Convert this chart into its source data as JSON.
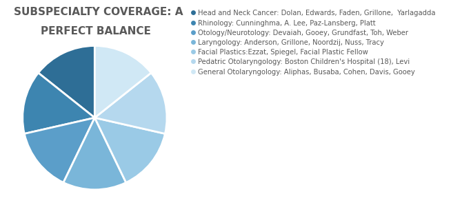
{
  "title_line1": "SUBSPECIALTY COVERAGE: A",
  "title_line2": "PERFECT BALANCE",
  "title_fontsize": 11,
  "title_color": "#595959",
  "slices": [
    {
      "label": "Head and Neck Cancer: Dolan, Edwards, Faden, Grillone,  Yarlagadda",
      "value": 14.28,
      "color": "#2E6E96"
    },
    {
      "label": "Rhinology: Cunninghma, A. Lee, Paz-Lansberg, Platt",
      "value": 14.28,
      "color": "#3D85B0"
    },
    {
      "label": "Otology/Neurotology: Devaiah, Gooey, Grundfast, Toh, Weber",
      "value": 14.28,
      "color": "#5B9EC9"
    },
    {
      "label": "Laryngology: Anderson, Grillone, Noordzij, Nuss, Tracy",
      "value": 14.28,
      "color": "#7AB6D9"
    },
    {
      "label": "Facial Plastics:Ezzat, Spiegel, Facial Plastic Fellow",
      "value": 14.28,
      "color": "#9ACAE6"
    },
    {
      "label": "Pedatric Otolaryngology: Boston Children's Hospital (18), Levi",
      "value": 14.28,
      "color": "#B5D8EE"
    },
    {
      "label": "General Otolaryngology: Aliphas, Busaba, Cohen, Davis, Gooey",
      "value": 14.28,
      "color": "#D0E8F5"
    }
  ],
  "startangle": 90,
  "legend_fontsize": 7.2,
  "background_color": "#ffffff"
}
